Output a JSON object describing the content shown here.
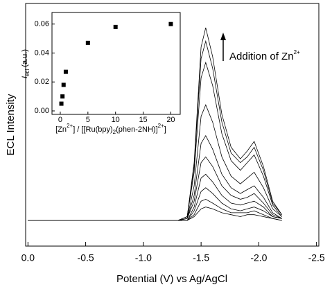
{
  "chart_data": [
    {
      "type": "line",
      "xlabel": "Potential (V) vs Ag/AgCl",
      "ylabel": "ECL Intensity",
      "annotation": [
        "Addition of Zn",
        "2+"
      ],
      "color": "#000000",
      "xlim": [
        0.02,
        -2.52
      ],
      "ylim": [
        -0.133,
        1.126
      ],
      "xticks": [
        {
          "value": 0,
          "label": "0.0"
        },
        -0.5,
        {
          "value": -1,
          "label": "-1.0"
        },
        -1.5,
        {
          "value": -2,
          "label": "-2.0"
        },
        -2.5
      ],
      "x": [
        0,
        -1.0,
        -1.3,
        -1.38,
        -1.44,
        -1.5,
        -1.54,
        -1.6,
        -1.68,
        -1.76,
        -1.84,
        -1.9,
        -1.96,
        -2.04,
        -2.12,
        -2.2
      ],
      "series": [
        {
          "values": [
            0,
            0,
            0,
            0.02,
            0.3,
            0.9,
            1.0,
            0.85,
            0.55,
            0.38,
            0.32,
            0.36,
            0.41,
            0.28,
            0.1,
            0.03
          ]
        },
        {
          "values": [
            0,
            0,
            0,
            0.02,
            0.28,
            0.84,
            0.93,
            0.79,
            0.51,
            0.35,
            0.3,
            0.33,
            0.38,
            0.26,
            0.09,
            0.03
          ]
        },
        {
          "values": [
            0,
            0,
            0,
            0.02,
            0.25,
            0.74,
            0.82,
            0.7,
            0.45,
            0.31,
            0.26,
            0.3,
            0.34,
            0.23,
            0.08,
            0.02
          ]
        },
        {
          "values": [
            0,
            0,
            0,
            0.01,
            0.18,
            0.54,
            0.6,
            0.51,
            0.33,
            0.23,
            0.19,
            0.22,
            0.25,
            0.17,
            0.06,
            0.02
          ]
        },
        {
          "values": [
            0,
            0,
            0,
            0.01,
            0.13,
            0.4,
            0.44,
            0.37,
            0.24,
            0.17,
            0.14,
            0.16,
            0.18,
            0.12,
            0.04,
            0.01
          ]
        },
        {
          "values": [
            0,
            0,
            0,
            0.01,
            0.1,
            0.3,
            0.33,
            0.28,
            0.18,
            0.13,
            0.11,
            0.12,
            0.14,
            0.09,
            0.03,
            0.01
          ]
        },
        {
          "values": [
            0,
            0,
            0,
            0,
            0.07,
            0.22,
            0.24,
            0.2,
            0.13,
            0.09,
            0.08,
            0.09,
            0.1,
            0.07,
            0.02,
            0.01
          ]
        },
        {
          "values": [
            0,
            0,
            0,
            0,
            0.05,
            0.15,
            0.17,
            0.14,
            0.09,
            0.06,
            0.05,
            0.06,
            0.07,
            0.05,
            0.02,
            0.01
          ]
        },
        {
          "values": [
            0,
            0,
            0,
            0,
            0.03,
            0.1,
            0.11,
            0.09,
            0.06,
            0.04,
            0.04,
            0.04,
            0.05,
            0.03,
            0.01,
            0
          ]
        },
        {
          "values": [
            0,
            0,
            0,
            0,
            0.02,
            0.06,
            0.07,
            0.06,
            0.04,
            0.03,
            0.02,
            0.03,
            0.03,
            0.02,
            0.01,
            0
          ]
        }
      ]
    },
    {
      "type": "scatter",
      "xlabel": [
        "[Zn",
        "2+",
        "] / [[Ru(bpy)",
        "2",
        "(phen-2NH)]",
        "2+",
        "]"
      ],
      "ylabel": [
        "I",
        "ecl",
        " (a.u.)"
      ],
      "color": "#000000",
      "xlim": [
        -1.5,
        21.7
      ],
      "ylim": [
        -0.0024,
        0.068
      ],
      "xticks": [
        0,
        5,
        10,
        15,
        20
      ],
      "yticks": [
        {
          "value": 0,
          "label": "0.00"
        },
        {
          "value": 0.02,
          "label": "0.02"
        },
        {
          "value": 0.04,
          "label": "0.04"
        },
        {
          "value": 0.06,
          "label": "0.06"
        }
      ],
      "x": [
        0.2,
        0.4,
        0.6,
        1,
        5,
        10,
        20
      ],
      "values": [
        0.005,
        0.01,
        0.018,
        0.027,
        0.047,
        0.058,
        0.06
      ]
    }
  ]
}
